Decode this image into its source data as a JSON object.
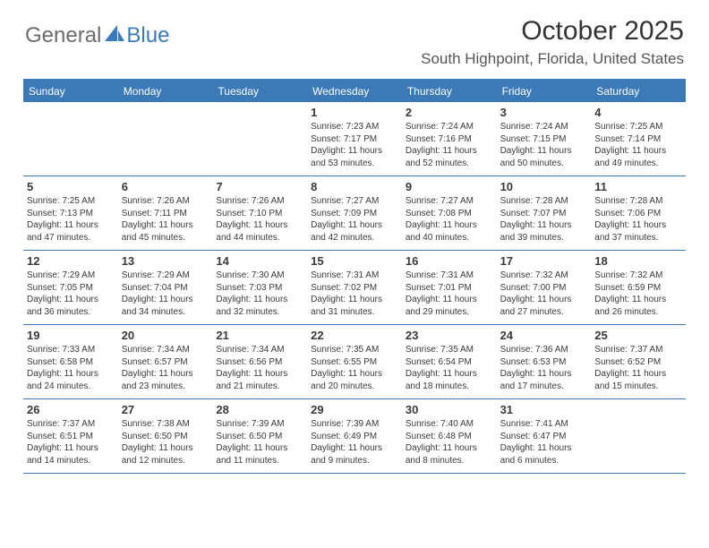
{
  "brand": {
    "left": "General",
    "right": "Blue"
  },
  "header": {
    "title": "October 2025",
    "location": "South Highpoint, Florida, United States"
  },
  "colors": {
    "accent": "#3b79b7",
    "brand_gray": "#6b6b6b",
    "text": "#3a3a3a",
    "background": "#ffffff"
  },
  "calendar": {
    "day_names": [
      "Sunday",
      "Monday",
      "Tuesday",
      "Wednesday",
      "Thursday",
      "Friday",
      "Saturday"
    ],
    "weeks": [
      [
        null,
        null,
        null,
        {
          "n": "1",
          "sr": "Sunrise: 7:23 AM",
          "ss": "Sunset: 7:17 PM",
          "d1": "Daylight: 11 hours",
          "d2": "and 53 minutes."
        },
        {
          "n": "2",
          "sr": "Sunrise: 7:24 AM",
          "ss": "Sunset: 7:16 PM",
          "d1": "Daylight: 11 hours",
          "d2": "and 52 minutes."
        },
        {
          "n": "3",
          "sr": "Sunrise: 7:24 AM",
          "ss": "Sunset: 7:15 PM",
          "d1": "Daylight: 11 hours",
          "d2": "and 50 minutes."
        },
        {
          "n": "4",
          "sr": "Sunrise: 7:25 AM",
          "ss": "Sunset: 7:14 PM",
          "d1": "Daylight: 11 hours",
          "d2": "and 49 minutes."
        }
      ],
      [
        {
          "n": "5",
          "sr": "Sunrise: 7:25 AM",
          "ss": "Sunset: 7:13 PM",
          "d1": "Daylight: 11 hours",
          "d2": "and 47 minutes."
        },
        {
          "n": "6",
          "sr": "Sunrise: 7:26 AM",
          "ss": "Sunset: 7:11 PM",
          "d1": "Daylight: 11 hours",
          "d2": "and 45 minutes."
        },
        {
          "n": "7",
          "sr": "Sunrise: 7:26 AM",
          "ss": "Sunset: 7:10 PM",
          "d1": "Daylight: 11 hours",
          "d2": "and 44 minutes."
        },
        {
          "n": "8",
          "sr": "Sunrise: 7:27 AM",
          "ss": "Sunset: 7:09 PM",
          "d1": "Daylight: 11 hours",
          "d2": "and 42 minutes."
        },
        {
          "n": "9",
          "sr": "Sunrise: 7:27 AM",
          "ss": "Sunset: 7:08 PM",
          "d1": "Daylight: 11 hours",
          "d2": "and 40 minutes."
        },
        {
          "n": "10",
          "sr": "Sunrise: 7:28 AM",
          "ss": "Sunset: 7:07 PM",
          "d1": "Daylight: 11 hours",
          "d2": "and 39 minutes."
        },
        {
          "n": "11",
          "sr": "Sunrise: 7:28 AM",
          "ss": "Sunset: 7:06 PM",
          "d1": "Daylight: 11 hours",
          "d2": "and 37 minutes."
        }
      ],
      [
        {
          "n": "12",
          "sr": "Sunrise: 7:29 AM",
          "ss": "Sunset: 7:05 PM",
          "d1": "Daylight: 11 hours",
          "d2": "and 36 minutes."
        },
        {
          "n": "13",
          "sr": "Sunrise: 7:29 AM",
          "ss": "Sunset: 7:04 PM",
          "d1": "Daylight: 11 hours",
          "d2": "and 34 minutes."
        },
        {
          "n": "14",
          "sr": "Sunrise: 7:30 AM",
          "ss": "Sunset: 7:03 PM",
          "d1": "Daylight: 11 hours",
          "d2": "and 32 minutes."
        },
        {
          "n": "15",
          "sr": "Sunrise: 7:31 AM",
          "ss": "Sunset: 7:02 PM",
          "d1": "Daylight: 11 hours",
          "d2": "and 31 minutes."
        },
        {
          "n": "16",
          "sr": "Sunrise: 7:31 AM",
          "ss": "Sunset: 7:01 PM",
          "d1": "Daylight: 11 hours",
          "d2": "and 29 minutes."
        },
        {
          "n": "17",
          "sr": "Sunrise: 7:32 AM",
          "ss": "Sunset: 7:00 PM",
          "d1": "Daylight: 11 hours",
          "d2": "and 27 minutes."
        },
        {
          "n": "18",
          "sr": "Sunrise: 7:32 AM",
          "ss": "Sunset: 6:59 PM",
          "d1": "Daylight: 11 hours",
          "d2": "and 26 minutes."
        }
      ],
      [
        {
          "n": "19",
          "sr": "Sunrise: 7:33 AM",
          "ss": "Sunset: 6:58 PM",
          "d1": "Daylight: 11 hours",
          "d2": "and 24 minutes."
        },
        {
          "n": "20",
          "sr": "Sunrise: 7:34 AM",
          "ss": "Sunset: 6:57 PM",
          "d1": "Daylight: 11 hours",
          "d2": "and 23 minutes."
        },
        {
          "n": "21",
          "sr": "Sunrise: 7:34 AM",
          "ss": "Sunset: 6:56 PM",
          "d1": "Daylight: 11 hours",
          "d2": "and 21 minutes."
        },
        {
          "n": "22",
          "sr": "Sunrise: 7:35 AM",
          "ss": "Sunset: 6:55 PM",
          "d1": "Daylight: 11 hours",
          "d2": "and 20 minutes."
        },
        {
          "n": "23",
          "sr": "Sunrise: 7:35 AM",
          "ss": "Sunset: 6:54 PM",
          "d1": "Daylight: 11 hours",
          "d2": "and 18 minutes."
        },
        {
          "n": "24",
          "sr": "Sunrise: 7:36 AM",
          "ss": "Sunset: 6:53 PM",
          "d1": "Daylight: 11 hours",
          "d2": "and 17 minutes."
        },
        {
          "n": "25",
          "sr": "Sunrise: 7:37 AM",
          "ss": "Sunset: 6:52 PM",
          "d1": "Daylight: 11 hours",
          "d2": "and 15 minutes."
        }
      ],
      [
        {
          "n": "26",
          "sr": "Sunrise: 7:37 AM",
          "ss": "Sunset: 6:51 PM",
          "d1": "Daylight: 11 hours",
          "d2": "and 14 minutes."
        },
        {
          "n": "27",
          "sr": "Sunrise: 7:38 AM",
          "ss": "Sunset: 6:50 PM",
          "d1": "Daylight: 11 hours",
          "d2": "and 12 minutes."
        },
        {
          "n": "28",
          "sr": "Sunrise: 7:39 AM",
          "ss": "Sunset: 6:50 PM",
          "d1": "Daylight: 11 hours",
          "d2": "and 11 minutes."
        },
        {
          "n": "29",
          "sr": "Sunrise: 7:39 AM",
          "ss": "Sunset: 6:49 PM",
          "d1": "Daylight: 11 hours",
          "d2": "and 9 minutes."
        },
        {
          "n": "30",
          "sr": "Sunrise: 7:40 AM",
          "ss": "Sunset: 6:48 PM",
          "d1": "Daylight: 11 hours",
          "d2": "and 8 minutes."
        },
        {
          "n": "31",
          "sr": "Sunrise: 7:41 AM",
          "ss": "Sunset: 6:47 PM",
          "d1": "Daylight: 11 hours",
          "d2": "and 6 minutes."
        },
        null
      ]
    ]
  }
}
